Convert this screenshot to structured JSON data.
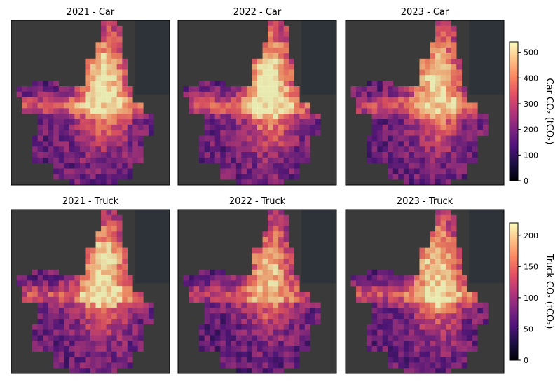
{
  "chart_data": {
    "type": "heatmap",
    "grid": {
      "rows": 2,
      "cols": 3
    },
    "rows": [
      {
        "vehicle": "Car",
        "colorbar": {
          "label": "Car CO₂ (tCO₂)",
          "range": [
            0,
            540
          ],
          "ticks": [
            0,
            100,
            200,
            300,
            400,
            500
          ],
          "colormap": "magma"
        },
        "panels": [
          {
            "title": "2021 - Car",
            "year": 2021,
            "intensity": 1.0
          },
          {
            "title": "2022 - Car",
            "year": 2022,
            "intensity": 1.06
          },
          {
            "title": "2023 - Car",
            "year": 2023,
            "intensity": 0.97
          }
        ]
      },
      {
        "vehicle": "Truck",
        "colorbar": {
          "label": "Truck CO₂ (tCO₂)",
          "range": [
            0,
            220
          ],
          "ticks": [
            0,
            50,
            100,
            150,
            200
          ],
          "colormap": "magma"
        },
        "panels": [
          {
            "title": "2021 - Truck",
            "year": 2021,
            "intensity": 1.0
          },
          {
            "title": "2022 - Truck",
            "year": 2022,
            "intensity": 0.85
          },
          {
            "title": "2023 - Truck",
            "year": 2023,
            "intensity": 0.97
          }
        ]
      }
    ],
    "colors": {
      "basemap": "#3a3a3a",
      "water": "#2c333a",
      "frame": "#000000"
    }
  }
}
